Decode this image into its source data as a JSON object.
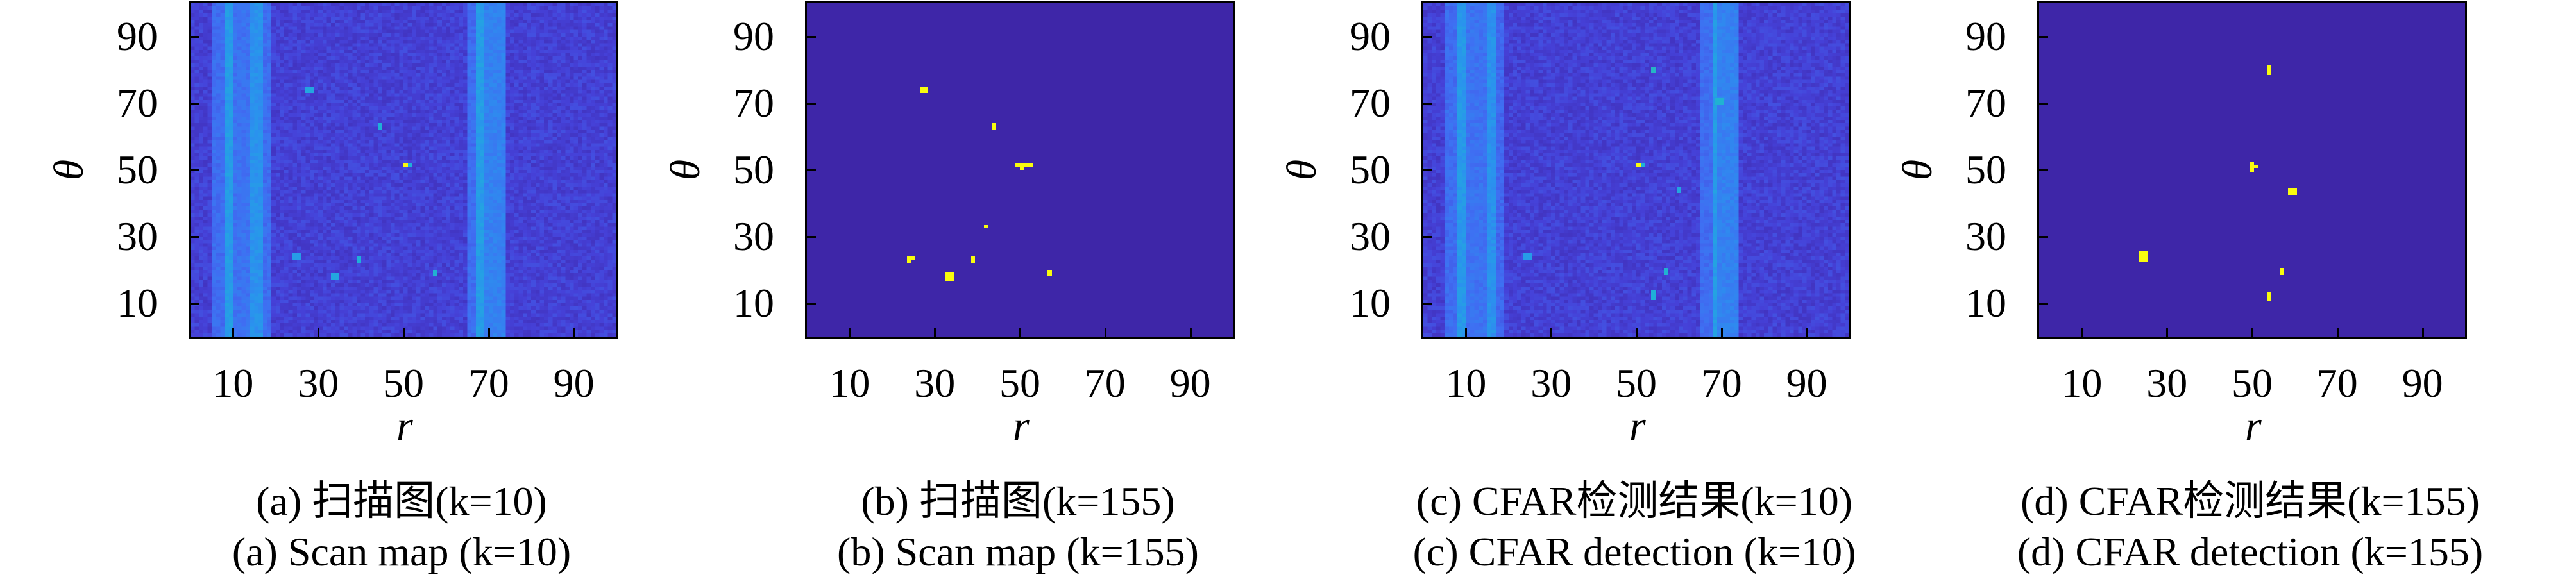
{
  "colors": {
    "low": "#3e26a8",
    "high": "#f9fb0e",
    "axis": "#000000"
  },
  "chart_data": [
    {
      "type": "heatmap",
      "id": "a",
      "caption_cn": "(a) 扫描图(k=10)",
      "caption_en": "(a) Scan map (k=10)",
      "xlabel": "r",
      "ylabel": "θ",
      "xlim": [
        0,
        100
      ],
      "ylim": [
        0,
        100
      ],
      "xticks": [
        10,
        30,
        50,
        70,
        90
      ],
      "yticks": [
        10,
        30,
        50,
        70,
        90
      ],
      "binary": false,
      "noise": [
        0.08,
        0.2
      ],
      "bands": [
        {
          "r": [
            5,
            8
          ],
          "value": 0.3
        },
        {
          "r": [
            8,
            10
          ],
          "value": 0.5
        },
        {
          "r": [
            10,
            14
          ],
          "value": 0.32
        },
        {
          "r": [
            14,
            17
          ],
          "value": 0.45
        },
        {
          "r": [
            17,
            19
          ],
          "value": 0.3
        },
        {
          "r": [
            65.5,
            67.5
          ],
          "value": 0.3
        },
        {
          "r": [
            67.5,
            69
          ],
          "value": 0.5
        },
        {
          "r": [
            69,
            74
          ],
          "value": 0.38
        }
      ],
      "targets": [
        {
          "r": 27,
          "theta": 73,
          "w": 2,
          "h": 2,
          "value": 0.55
        },
        {
          "r": 44,
          "theta": 62,
          "w": 1,
          "h": 2,
          "value": 0.6
        },
        {
          "r": 50,
          "theta": 51,
          "w": 1,
          "h": 1,
          "value": 1.0
        },
        {
          "r": 51,
          "theta": 51,
          "w": 1,
          "h": 1,
          "value": 0.6
        },
        {
          "r": 24,
          "theta": 23,
          "w": 2,
          "h": 2,
          "value": 0.5
        },
        {
          "r": 33,
          "theta": 17,
          "w": 2,
          "h": 2,
          "value": 0.55
        },
        {
          "r": 39,
          "theta": 22,
          "w": 1,
          "h": 2,
          "value": 0.6
        },
        {
          "r": 57,
          "theta": 18,
          "w": 1,
          "h": 2,
          "value": 0.62
        }
      ]
    },
    {
      "type": "heatmap",
      "id": "b",
      "caption_cn": "(b) 扫描图(k=155)",
      "caption_en": "(b) Scan map (k=155)",
      "xlabel": "r",
      "ylabel": "θ",
      "xlim": [
        0,
        100
      ],
      "ylim": [
        0,
        100
      ],
      "xticks": [
        10,
        30,
        50,
        70,
        90
      ],
      "yticks": [
        10,
        30,
        50,
        70,
        90
      ],
      "binary": true,
      "targets": [
        {
          "r": 26.5,
          "theta": 73,
          "w": 2,
          "h": 2,
          "value": 1
        },
        {
          "r": 43.5,
          "theta": 62,
          "w": 1,
          "h": 2,
          "value": 1
        },
        {
          "r": 49,
          "theta": 51,
          "w": 4,
          "h": 1,
          "value": 1
        },
        {
          "r": 50,
          "theta": 50,
          "w": 1,
          "h": 1,
          "value": 1
        },
        {
          "r": 41.5,
          "theta": 32.5,
          "w": 1,
          "h": 1,
          "value": 1
        },
        {
          "r": 23.5,
          "theta": 23,
          "w": 2,
          "h": 1,
          "value": 1
        },
        {
          "r": 23.5,
          "theta": 22,
          "w": 1,
          "h": 1,
          "value": 1
        },
        {
          "r": 38.5,
          "theta": 22,
          "w": 1,
          "h": 2,
          "value": 1
        },
        {
          "r": 32.5,
          "theta": 16.5,
          "w": 2,
          "h": 3,
          "value": 1
        },
        {
          "r": 56.5,
          "theta": 18,
          "w": 1,
          "h": 2,
          "value": 1
        }
      ]
    },
    {
      "type": "heatmap",
      "id": "c",
      "caption_cn": "(c) CFAR检测结果(k=10)",
      "caption_en": "(c) CFAR detection (k=10)",
      "xlabel": "r",
      "ylabel": "θ",
      "xlim": [
        0,
        100
      ],
      "ylim": [
        0,
        100
      ],
      "xticks": [
        10,
        30,
        50,
        70,
        90
      ],
      "yticks": [
        10,
        30,
        50,
        70,
        90
      ],
      "binary": false,
      "noise": [
        0.08,
        0.2
      ],
      "bands": [
        {
          "r": [
            5.5,
            8
          ],
          "value": 0.3
        },
        {
          "r": [
            8,
            10
          ],
          "value": 0.48
        },
        {
          "r": [
            10,
            15
          ],
          "value": 0.32
        },
        {
          "r": [
            15,
            17
          ],
          "value": 0.45
        },
        {
          "r": [
            17,
            19
          ],
          "value": 0.28
        },
        {
          "r": [
            65.5,
            68
          ],
          "value": 0.3
        },
        {
          "r": [
            68,
            69.5
          ],
          "value": 0.5
        },
        {
          "r": [
            69.5,
            74.5
          ],
          "value": 0.38
        }
      ],
      "targets": [
        {
          "r": 53.5,
          "theta": 79,
          "w": 1,
          "h": 2,
          "value": 0.65
        },
        {
          "r": 68.5,
          "theta": 69.5,
          "w": 2,
          "h": 2,
          "value": 0.62
        },
        {
          "r": 50,
          "theta": 51,
          "w": 1,
          "h": 1,
          "value": 1.0
        },
        {
          "r": 51,
          "theta": 51,
          "w": 1,
          "h": 1,
          "value": 0.6
        },
        {
          "r": 59.5,
          "theta": 43,
          "w": 1,
          "h": 2,
          "value": 0.55
        },
        {
          "r": 23.5,
          "theta": 23,
          "w": 2,
          "h": 2,
          "value": 0.5
        },
        {
          "r": 56.5,
          "theta": 18.5,
          "w": 1,
          "h": 2,
          "value": 0.62
        },
        {
          "r": 53.5,
          "theta": 11,
          "w": 1,
          "h": 3,
          "value": 0.6
        }
      ]
    },
    {
      "type": "heatmap",
      "id": "d",
      "caption_cn": "(d) CFAR检测结果(k=155)",
      "caption_en": "(d) CFAR detection (k=155)",
      "xlabel": "r",
      "ylabel": "θ",
      "xlim": [
        0,
        100
      ],
      "ylim": [
        0,
        100
      ],
      "xticks": [
        10,
        30,
        50,
        70,
        90
      ],
      "yticks": [
        10,
        30,
        50,
        70,
        90
      ],
      "binary": true,
      "targets": [
        {
          "r": 53.5,
          "theta": 78.5,
          "w": 1,
          "h": 3,
          "value": 1
        },
        {
          "r": 49.5,
          "theta": 49.5,
          "w": 1,
          "h": 3,
          "value": 1
        },
        {
          "r": 50.5,
          "theta": 50.5,
          "w": 1,
          "h": 1,
          "value": 1
        },
        {
          "r": 58.5,
          "theta": 42.5,
          "w": 2,
          "h": 2,
          "value": 1
        },
        {
          "r": 23.5,
          "theta": 22.5,
          "w": 2,
          "h": 3,
          "value": 1
        },
        {
          "r": 56.5,
          "theta": 18.5,
          "w": 1,
          "h": 2,
          "value": 1
        },
        {
          "r": 53.5,
          "theta": 10.5,
          "w": 1,
          "h": 3,
          "value": 1
        }
      ]
    }
  ]
}
